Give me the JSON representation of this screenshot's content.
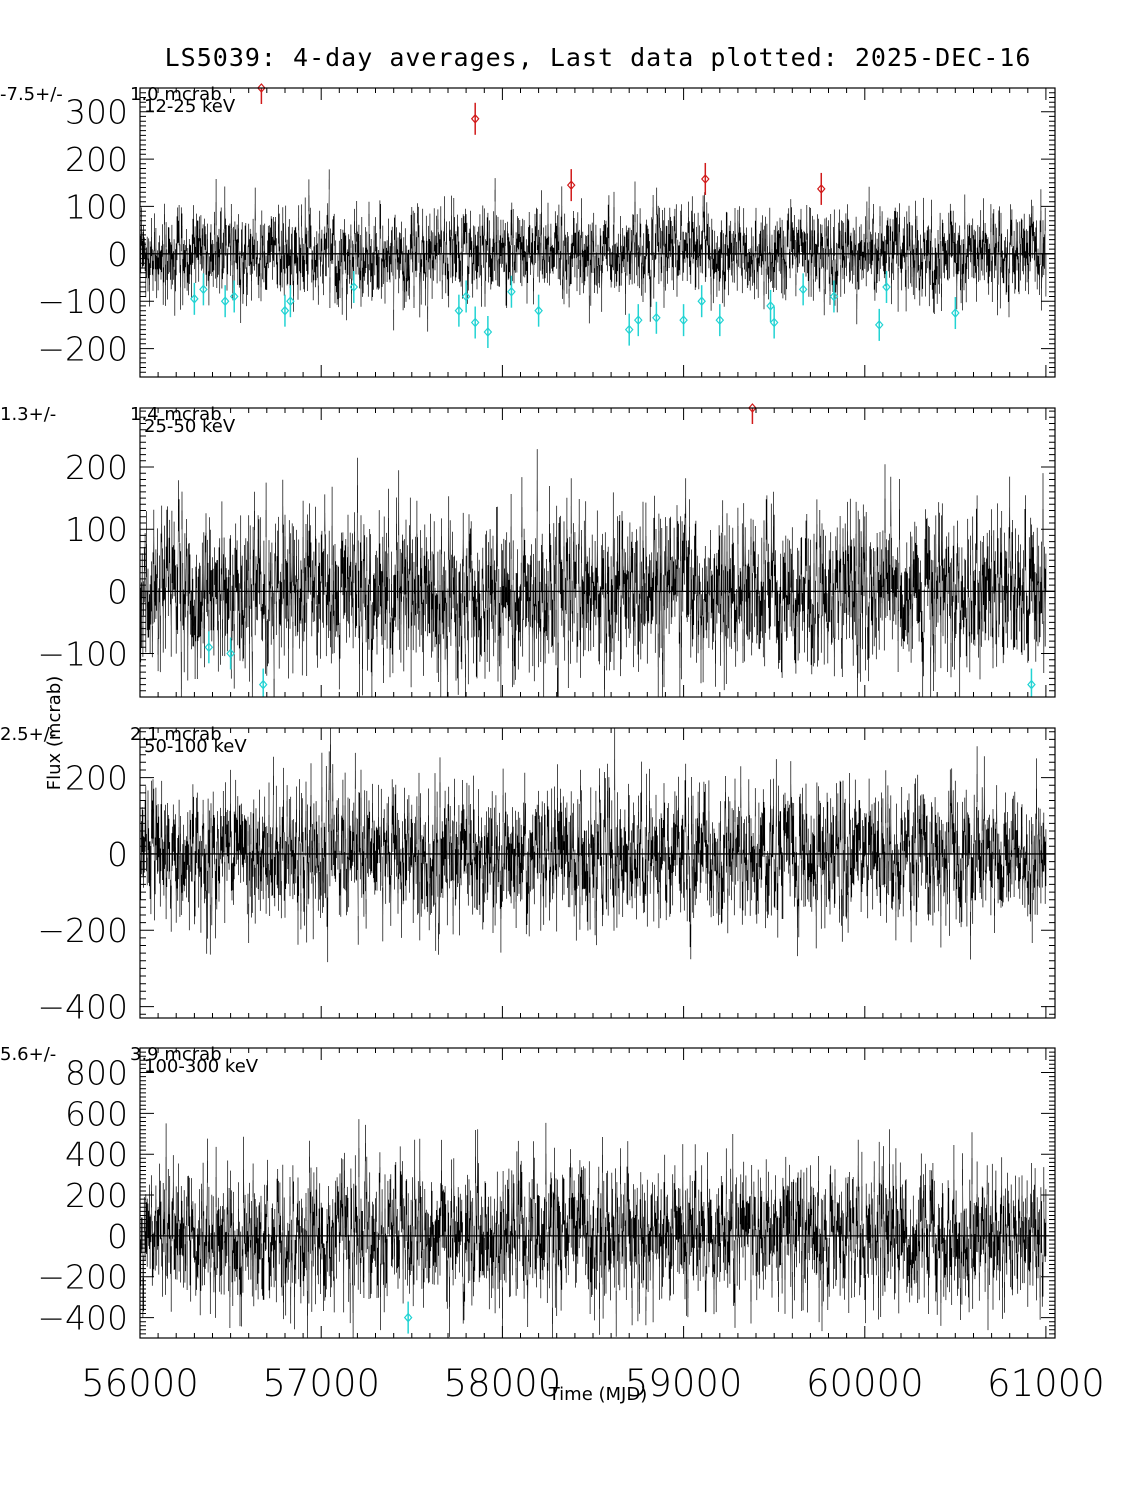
{
  "chart_data": {
    "type": "line",
    "title": "LS5039:  4-day averages,  Last data plotted: 2025-DEC-16",
    "xlabel": "Time (MJD)",
    "ylabel": "Flux (mcrab)",
    "xlim": [
      56000,
      61050
    ],
    "xticks": [
      "56000",
      "57000",
      "58000",
      "59000",
      "60000",
      "61000"
    ],
    "panels": [
      {
        "band": "12-25 keV",
        "mean": "-7.5+/-",
        "error": "1.0 mcrab",
        "ylim": [
          -260,
          350
        ],
        "yticks": [
          -200,
          -100,
          0,
          100,
          200,
          300
        ],
        "noise": 55,
        "outliers_high": [
          [
            56670,
            350
          ],
          [
            57850,
            285
          ],
          [
            58380,
            145
          ],
          [
            59120,
            158
          ],
          [
            59760,
            137
          ]
        ],
        "outliers_low": [
          [
            56300,
            -95
          ],
          [
            56350,
            -75
          ],
          [
            56470,
            -100
          ],
          [
            56520,
            -90
          ],
          [
            56800,
            -120
          ],
          [
            56830,
            -100
          ],
          [
            57180,
            -70
          ],
          [
            57760,
            -120
          ],
          [
            57800,
            -90
          ],
          [
            57850,
            -145
          ],
          [
            57920,
            -165
          ],
          [
            58050,
            -80
          ],
          [
            58200,
            -120
          ],
          [
            58700,
            -160
          ],
          [
            58750,
            -140
          ],
          [
            58850,
            -135
          ],
          [
            59000,
            -140
          ],
          [
            59100,
            -100
          ],
          [
            59200,
            -140
          ],
          [
            59480,
            -110
          ],
          [
            59500,
            -145
          ],
          [
            59660,
            -75
          ],
          [
            59830,
            -90
          ],
          [
            60080,
            -150
          ],
          [
            60120,
            -70
          ],
          [
            60500,
            -125
          ]
        ]
      },
      {
        "band": "25-50 keV",
        "mean": "1.3+/-",
        "error": "1.4 mcrab",
        "ylim": [
          -170,
          295
        ],
        "yticks": [
          -100,
          0,
          100,
          200
        ],
        "noise": 70,
        "outliers_high": [
          [
            59380,
            295
          ]
        ],
        "outliers_low": [
          [
            56380,
            -90
          ],
          [
            56500,
            -100
          ],
          [
            56680,
            -150
          ],
          [
            60920,
            -150
          ]
        ]
      },
      {
        "band": "50-100 keV",
        "mean": "2.5+/-",
        "error": "2.1 mcrab",
        "ylim": [
          -430,
          330
        ],
        "yticks": [
          -400,
          -200,
          0,
          200
        ],
        "noise": 100,
        "outliers_high": [],
        "outliers_low": []
      },
      {
        "band": "100-300 keV",
        "mean": "5.6+/-",
        "error": "3.9 mcrab",
        "ylim": [
          -500,
          920
        ],
        "yticks": [
          -400,
          -200,
          0,
          200,
          400,
          600,
          800
        ],
        "noise": 190,
        "outliers_high": [],
        "outliers_low": [
          [
            57480,
            -400
          ]
        ]
      }
    ],
    "series_colors": {
      "data": "#000000",
      "high_outlier": "#d11a1a",
      "low_outlier": "#22d3d3"
    },
    "grid": false
  }
}
